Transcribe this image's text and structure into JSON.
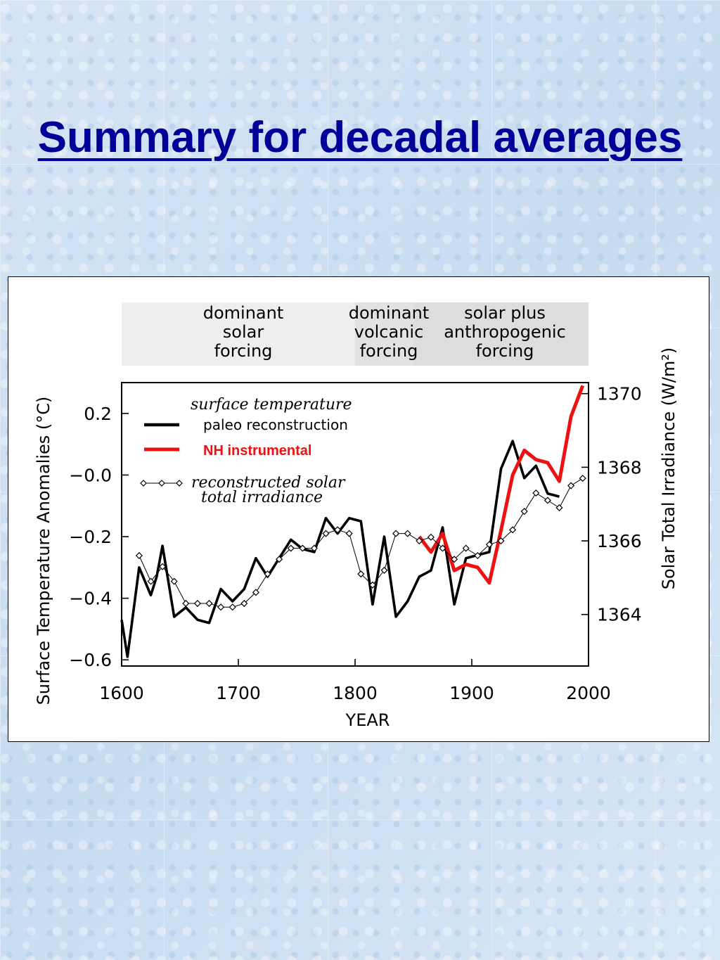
{
  "slide": {
    "title": "Summary for decadal averages"
  },
  "annotations": {
    "band1": [
      "dominant",
      "solar",
      "forcing"
    ],
    "band2": [
      "dominant",
      "volcanic",
      "forcing"
    ],
    "band3": [
      "solar plus",
      "anthropogenic",
      "forcing"
    ]
  },
  "legend": {
    "heading": "surface temperature",
    "paleo_label": "paleo reconstruction",
    "instrumental_label": "NH instrumental",
    "solar_label_line1": "reconstructed solar",
    "solar_label_line2": "total irradiance"
  },
  "colors": {
    "paleo": "#000000",
    "instrumental": "#ee1111",
    "solar": "#000000",
    "title": "#000099",
    "band": "#e8e8e8"
  },
  "chart_data": {
    "type": "line",
    "xlabel": "YEAR",
    "ylabel_left": "Surface Temperature Anomalies (°C)",
    "ylabel_right": "Solar Total Irradiance (W/m²)",
    "xlim": [
      1600,
      2000
    ],
    "ylim_left": [
      -0.62,
      0.3
    ],
    "ylim_right": [
      1362.6,
      1370.3
    ],
    "x_ticks": [
      1600,
      1700,
      1800,
      1900,
      2000
    ],
    "y_ticks_left": [
      0.2,
      0.0,
      -0.2,
      -0.4,
      -0.6
    ],
    "y_tick_labels_left": [
      "0.2",
      "−0.0",
      "−0.2",
      "−0.4",
      "−0.6"
    ],
    "y_ticks_right": [
      1370,
      1368,
      1366,
      1364
    ],
    "y_tick_labels_right": [
      "1370",
      "1368",
      "1366",
      "1364"
    ],
    "grid": false,
    "shaded_bands": [
      {
        "x": [
          1600,
          1800
        ]
      },
      {
        "x": [
          1800,
          1850
        ]
      },
      {
        "x": [
          1850,
          2000
        ]
      }
    ],
    "series": [
      {
        "name": "paleo reconstruction",
        "axis": "left",
        "x": [
          1600,
          1605,
          1615,
          1625,
          1630,
          1635,
          1645,
          1655,
          1665,
          1675,
          1685,
          1695,
          1705,
          1715,
          1725,
          1735,
          1745,
          1755,
          1765,
          1775,
          1785,
          1795,
          1805,
          1815,
          1825,
          1835,
          1845,
          1855,
          1865,
          1875,
          1885,
          1895,
          1905,
          1915,
          1925,
          1935,
          1945,
          1955,
          1965,
          1975
        ],
        "y": [
          -0.47,
          -0.59,
          -0.3,
          -0.39,
          -0.33,
          -0.23,
          -0.46,
          -0.43,
          -0.47,
          -0.48,
          -0.37,
          -0.41,
          -0.37,
          -0.27,
          -0.33,
          -0.27,
          -0.21,
          -0.24,
          -0.25,
          -0.14,
          -0.19,
          -0.14,
          -0.15,
          -0.42,
          -0.2,
          -0.46,
          -0.41,
          -0.33,
          -0.31,
          -0.17,
          -0.42,
          -0.27,
          -0.26,
          -0.25,
          0.02,
          0.11,
          -0.01,
          0.03,
          -0.06,
          -0.07
        ]
      },
      {
        "name": "NH instrumental",
        "axis": "left",
        "x": [
          1855,
          1865,
          1875,
          1885,
          1895,
          1905,
          1915,
          1925,
          1935,
          1945,
          1955,
          1965,
          1975,
          1985,
          1995
        ],
        "y": [
          -0.2,
          -0.25,
          -0.19,
          -0.31,
          -0.29,
          -0.3,
          -0.35,
          -0.18,
          0.0,
          0.08,
          0.05,
          0.04,
          -0.02,
          0.19,
          0.29
        ]
      },
      {
        "name": "reconstructed solar total irradiance",
        "axis": "right",
        "x": [
          1615,
          1625,
          1635,
          1645,
          1655,
          1665,
          1675,
          1685,
          1695,
          1705,
          1715,
          1725,
          1735,
          1745,
          1755,
          1765,
          1775,
          1785,
          1795,
          1805,
          1815,
          1825,
          1835,
          1845,
          1855,
          1865,
          1875,
          1885,
          1895,
          1905,
          1915,
          1925,
          1935,
          1945,
          1955,
          1965,
          1975,
          1985,
          1995
        ],
        "y": [
          1365.6,
          1364.9,
          1365.3,
          1364.9,
          1364.3,
          1364.3,
          1364.3,
          1364.2,
          1364.2,
          1364.3,
          1364.6,
          1365.1,
          1365.5,
          1365.8,
          1365.8,
          1365.8,
          1366.2,
          1366.3,
          1366.2,
          1365.1,
          1364.8,
          1365.2,
          1366.2,
          1366.2,
          1366.0,
          1366.1,
          1365.8,
          1365.5,
          1365.8,
          1365.6,
          1365.9,
          1366.0,
          1366.3,
          1366.8,
          1367.3,
          1367.1,
          1366.9,
          1367.5,
          1367.7
        ]
      }
    ]
  }
}
